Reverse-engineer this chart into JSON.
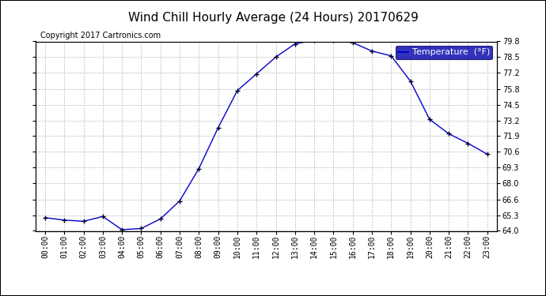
{
  "title": "Wind Chill Hourly Average (24 Hours) 20170629",
  "copyright_text": "Copyright 2017 Cartronics.com",
  "legend_label": "Temperature  (°F)",
  "hours": [
    "00:00",
    "01:00",
    "02:00",
    "03:00",
    "04:00",
    "05:00",
    "06:00",
    "07:00",
    "08:00",
    "09:00",
    "10:00",
    "11:00",
    "12:00",
    "13:00",
    "14:00",
    "15:00",
    "16:00",
    "17:00",
    "18:00",
    "19:00",
    "20:00",
    "21:00",
    "22:00",
    "23:00"
  ],
  "values": [
    65.1,
    64.9,
    64.8,
    65.2,
    64.1,
    64.2,
    65.0,
    66.5,
    69.2,
    72.6,
    75.7,
    77.1,
    78.5,
    79.6,
    79.9,
    79.9,
    79.7,
    79.0,
    78.6,
    76.5,
    73.3,
    72.1,
    71.3,
    70.4
  ],
  "ylim": [
    64.0,
    79.8
  ],
  "yticks": [
    64.0,
    65.3,
    66.6,
    68.0,
    69.3,
    70.6,
    71.9,
    73.2,
    74.5,
    75.8,
    77.2,
    78.5,
    79.8
  ],
  "line_color": "#0000cc",
  "grid_color": "#bbbbbb",
  "background_color": "#ffffff",
  "title_fontsize": 11,
  "copyright_fontsize": 7,
  "tick_fontsize": 7,
  "legend_bg_color": "#0000aa",
  "legend_text_color": "#ffffff",
  "legend_fontsize": 8,
  "outer_border_color": "#000000"
}
